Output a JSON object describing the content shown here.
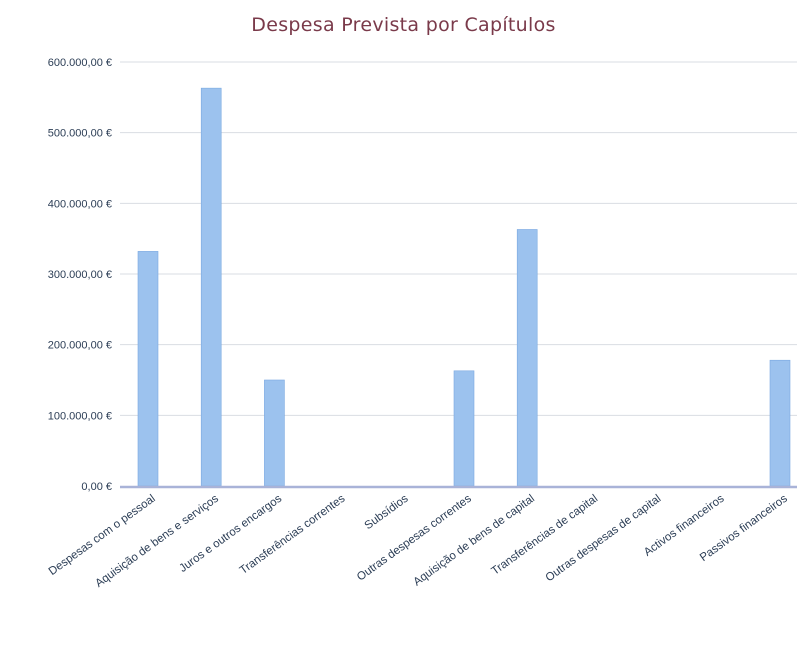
{
  "chart_data": {
    "type": "bar",
    "title": "Despesa Prevista por Capítulos",
    "xlabel": "",
    "ylabel": "",
    "categories": [
      "Despesas com o pessoal",
      "Aquisição de bens e serviços",
      "Juros e outros encargos",
      "Transferências correntes",
      "Subsídios",
      "Outras despesas correntes",
      "Aquisição de bens de capital",
      "Transferências de capital",
      "Outras despesas de capital",
      "Activos financeiros",
      "Passivos financeiros"
    ],
    "values": [
      332000,
      563000,
      150000,
      0,
      0,
      163000,
      363000,
      0,
      0,
      0,
      178000
    ],
    "ylim": [
      0,
      600000
    ],
    "yticks": [
      0,
      100000,
      200000,
      300000,
      400000,
      500000,
      600000
    ],
    "ytick_labels": [
      "0,00 €",
      "100.000,00 €",
      "200.000,00 €",
      "300.000,00 €",
      "400.000,00 €",
      "500.000,00 €",
      "600.000,00 €"
    ],
    "grid": true,
    "legend": "none",
    "colors": {
      "bar": "#9cc2ee",
      "bar_edge": "#7aa8e0",
      "title": "#7a3a4a",
      "axis_text": "#2b3d55",
      "grid": "#d9dde3",
      "baseline": "#a9b3d8"
    }
  }
}
